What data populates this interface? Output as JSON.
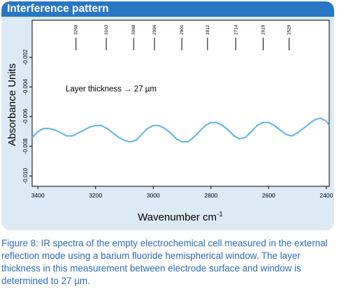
{
  "header": {
    "title": "Interference pattern"
  },
  "caption": "Figure 8: IR spectra of the empty electrochemical cell measured in the external reflection mode using a barium fluoride hemispherical window. The layer thickness in this measurement between electrode surface and window is determined to 27 µm.",
  "colors": {
    "header": "#2877c4",
    "panel": "#dceaf6",
    "line": "#5bb3e6",
    "caption": "#2a6cb5"
  },
  "chart_data": {
    "type": "line",
    "title": "",
    "xlabel": "Wavenumber cm",
    "xlabel_sup": "-1",
    "ylabel": "Absorbance Units",
    "xlim": [
      3420,
      2390
    ],
    "ylim": [
      -0.0107,
      0.0005
    ],
    "x_reversed": true,
    "x_ticks": [
      "3400",
      "3200",
      "3000",
      "2800",
      "2600",
      "2400"
    ],
    "y_ticks": [
      "-0.002",
      "-0.004",
      "-0.006",
      "-0.008",
      "-0.010"
    ],
    "annotation": "Layer thickness → 27 µm",
    "peaks": [
      "3268",
      "3163",
      "3068",
      "2996",
      "2901",
      "2812",
      "2714",
      "2619",
      "2529"
    ],
    "series": [
      {
        "x": [
          3420,
          3400,
          3380,
          3360,
          3340,
          3320,
          3300,
          3280,
          3260,
          3240,
          3220,
          3200,
          3180,
          3160,
          3140,
          3120,
          3100,
          3080,
          3060,
          3040,
          3020,
          3000,
          2980,
          2960,
          2940,
          2920,
          2900,
          2880,
          2860,
          2840,
          2820,
          2800,
          2780,
          2760,
          2740,
          2720,
          2700,
          2680,
          2660,
          2640,
          2620,
          2600,
          2580,
          2560,
          2540,
          2520,
          2500,
          2480,
          2460,
          2440,
          2420,
          2400,
          2390
        ],
        "values": [
          -0.0074,
          -0.007,
          -0.0068,
          -0.0068,
          -0.0069,
          -0.0071,
          -0.0073,
          -0.0073,
          -0.0071,
          -0.0069,
          -0.0067,
          -0.0066,
          -0.0066,
          -0.0068,
          -0.0071,
          -0.0074,
          -0.0076,
          -0.0077,
          -0.0076,
          -0.0072,
          -0.0068,
          -0.0066,
          -0.0066,
          -0.0068,
          -0.0071,
          -0.0075,
          -0.0077,
          -0.0077,
          -0.0074,
          -0.007,
          -0.0066,
          -0.0064,
          -0.0064,
          -0.0066,
          -0.0069,
          -0.0073,
          -0.0075,
          -0.0074,
          -0.007,
          -0.0066,
          -0.0064,
          -0.0064,
          -0.0066,
          -0.0069,
          -0.0072,
          -0.0073,
          -0.0071,
          -0.0068,
          -0.0065,
          -0.0062,
          -0.0061,
          -0.0063,
          -0.0066
        ]
      }
    ],
    "grid": false,
    "legend": "none"
  }
}
